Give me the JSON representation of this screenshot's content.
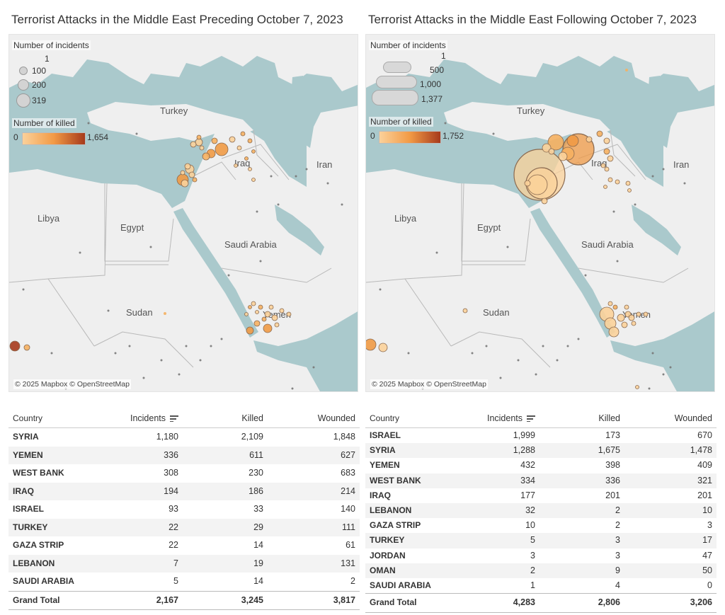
{
  "left": {
    "title": "Terrorist Attacks  in the Middle East Preceding October 7, 2023",
    "legend": {
      "incidents_title": "Number of incidents",
      "sizes": [
        "1",
        "100",
        "200",
        "319"
      ],
      "killed_title": "Number of killed",
      "killed_min": "0",
      "killed_max": "1,654"
    },
    "labels": {
      "turkey": "Turkey",
      "iraq": "Iraq",
      "iran": "Iran",
      "libya": "Libya",
      "egypt": "Egypt",
      "saudi": "Saudi Arabia",
      "sudan": "Sudan",
      "yemen": "Yemen"
    },
    "attribution": "© 2025 Mapbox © OpenStreetMap",
    "table": {
      "headers": [
        "Country",
        "Incidents",
        "Killed",
        "Wounded"
      ],
      "rows": [
        {
          "country": "SYRIA",
          "incidents": "1,180",
          "killed": "2,109",
          "wounded": "1,848"
        },
        {
          "country": "YEMEN",
          "incidents": "336",
          "killed": "611",
          "wounded": "627"
        },
        {
          "country": "WEST BANK",
          "incidents": "308",
          "killed": "230",
          "wounded": "683"
        },
        {
          "country": "IRAQ",
          "incidents": "194",
          "killed": "186",
          "wounded": "214"
        },
        {
          "country": "ISRAEL",
          "incidents": "93",
          "killed": "33",
          "wounded": "140"
        },
        {
          "country": "TURKEY",
          "incidents": "22",
          "killed": "29",
          "wounded": "111"
        },
        {
          "country": "GAZA STRIP",
          "incidents": "22",
          "killed": "14",
          "wounded": "61"
        },
        {
          "country": "LEBANON",
          "incidents": "7",
          "killed": "19",
          "wounded": "131"
        },
        {
          "country": "SAUDI ARABIA",
          "incidents": "5",
          "killed": "14",
          "wounded": "2"
        }
      ],
      "total": {
        "country": "Grand Total",
        "incidents": "2,167",
        "killed": "3,245",
        "wounded": "3,817"
      }
    }
  },
  "right": {
    "title": "Terrorist Attacks in the Middle East Following October 7, 2023",
    "legend": {
      "incidents_title": "Number of incidents",
      "sizes": [
        "1",
        "500",
        "1,000",
        "1,377"
      ],
      "killed_title": "Number of killed",
      "killed_min": "0",
      "killed_max": "1,752"
    },
    "labels": {
      "turkey": "Turkey",
      "iraq": "Iraq",
      "iran": "Iran",
      "libya": "Libya",
      "egypt": "Egypt",
      "saudi": "Saudi Arabia",
      "sudan": "Sudan",
      "yemen": "Yemen"
    },
    "attribution": "© 2025 Mapbox © OpenStreetMap",
    "table": {
      "headers": [
        "Country",
        "Incidents",
        "Killed",
        "Wounded"
      ],
      "rows": [
        {
          "country": "ISRAEL",
          "incidents": "1,999",
          "killed": "173",
          "wounded": "670"
        },
        {
          "country": "SYRIA",
          "incidents": "1,288",
          "killed": "1,675",
          "wounded": "1,478"
        },
        {
          "country": "YEMEN",
          "incidents": "432",
          "killed": "398",
          "wounded": "409"
        },
        {
          "country": "WEST BANK",
          "incidents": "334",
          "killed": "336",
          "wounded": "321"
        },
        {
          "country": "IRAQ",
          "incidents": "177",
          "killed": "201",
          "wounded": "201"
        },
        {
          "country": "LEBANON",
          "incidents": "32",
          "killed": "2",
          "wounded": "10"
        },
        {
          "country": "GAZA STRIP",
          "incidents": "10",
          "killed": "2",
          "wounded": "3"
        },
        {
          "country": "TURKEY",
          "incidents": "5",
          "killed": "3",
          "wounded": "17"
        },
        {
          "country": "JORDAN",
          "incidents": "3",
          "killed": "3",
          "wounded": "47"
        },
        {
          "country": "OMAN",
          "incidents": "2",
          "killed": "9",
          "wounded": "50"
        },
        {
          "country": "SAUDI ARABIA",
          "incidents": "1",
          "killed": "4",
          "wounded": "0"
        }
      ],
      "total": {
        "country": "Grand Total",
        "incidents": "4,283",
        "killed": "2,806",
        "wounded": "3,206"
      }
    }
  },
  "colors": {
    "water": "#aac9cc",
    "land": "#efefef",
    "border": "#b9b9b9",
    "marker_light": "#fbd19a",
    "marker_mid": "#f29a45",
    "marker_dark": "#a63a1c"
  }
}
